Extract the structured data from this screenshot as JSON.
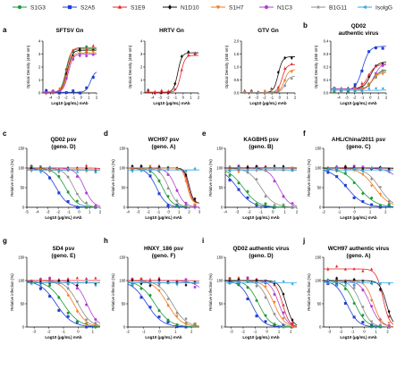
{
  "legend": [
    {
      "name": "S1G3",
      "color": "#1e9a3a",
      "marker": "circle"
    },
    {
      "name": "S2A5",
      "color": "#1f3fd6",
      "marker": "square"
    },
    {
      "name": "S1E9",
      "color": "#e8262a",
      "marker": "triangle-up"
    },
    {
      "name": "N1D10",
      "color": "#111111",
      "marker": "diamond"
    },
    {
      "name": "S1H7",
      "color": "#f07a1a",
      "marker": "triangle-down"
    },
    {
      "name": "N1C3",
      "color": "#b03fd2",
      "marker": "circle"
    },
    {
      "name": "B1G11",
      "color": "#8c8c8c",
      "marker": "star"
    },
    {
      "name": "IsolgG",
      "color": "#35a6e0",
      "marker": "triangle-left"
    }
  ],
  "chart_data": [
    {
      "panel": "a",
      "type": "line",
      "title": "SFTSV Gn",
      "xlabel": "Log10 (μg/mL) mAb",
      "ylabel": "Optical Density (450 nm)",
      "xlim": [
        -5,
        2
      ],
      "xticks": [
        -4,
        -3,
        -2,
        -1,
        0,
        1,
        2
      ],
      "ylim": [
        0,
        4
      ],
      "yticks": [
        0,
        1,
        2,
        3,
        4
      ],
      "series": [
        {
          "name": "S1G3",
          "ec50": -2.0,
          "top": 3.4,
          "bottom": 0.05,
          "hill": 1.4
        },
        {
          "name": "S2A5",
          "ec50": 1.2,
          "top": 1.7,
          "bottom": 0.05,
          "hill": 1.5
        },
        {
          "name": "S1E9",
          "ec50": -1.9,
          "top": 3.5,
          "bottom": 0.05,
          "hill": 1.4
        },
        {
          "name": "N1D10",
          "ec50": -1.8,
          "top": 3.3,
          "bottom": 0.05,
          "hill": 1.4
        },
        {
          "name": "S1H7",
          "ec50": -1.8,
          "top": 3.1,
          "bottom": 0.05,
          "hill": 1.4
        },
        {
          "name": "N1C3",
          "ec50": -1.7,
          "top": 3.0,
          "bottom": 0.05,
          "hill": 1.4
        }
      ]
    },
    {
      "panel": "",
      "type": "line",
      "title": "HRTV Gn",
      "xlabel": "Log10 (μg/mL) mAb",
      "ylabel": "Optical Density (450 nm)",
      "xlim": [
        -5,
        2
      ],
      "xticks": [
        -4,
        -3,
        -2,
        -1,
        0,
        1,
        2
      ],
      "ylim": [
        0,
        4
      ],
      "yticks": [
        0,
        1,
        2,
        3,
        4
      ],
      "series": [
        {
          "name": "N1D10",
          "ec50": -0.7,
          "top": 3.1,
          "bottom": 0.05,
          "hill": 1.6
        },
        {
          "name": "S1E9",
          "ec50": -0.3,
          "top": 2.9,
          "bottom": 0.05,
          "hill": 1.6
        }
      ]
    },
    {
      "panel": "",
      "type": "line",
      "title": "GTV Gn",
      "xlabel": "Log10 (μg/mL) mAb",
      "ylabel": "Optical Density (450 nm)",
      "xlim": [
        -5,
        2
      ],
      "xticks": [
        -4,
        -3,
        -2,
        -1,
        0,
        1,
        2
      ],
      "ylim": [
        0,
        2
      ],
      "yticks": [
        0.0,
        0.5,
        1.0,
        1.5,
        2.0
      ],
      "series": [
        {
          "name": "N1D10",
          "ec50": -0.2,
          "top": 1.4,
          "bottom": 0.02,
          "hill": 1.5
        },
        {
          "name": "S1E9",
          "ec50": 0.3,
          "top": 1.1,
          "bottom": 0.02,
          "hill": 1.5
        },
        {
          "name": "S1H7",
          "ec50": 0.6,
          "top": 0.9,
          "bottom": 0.02,
          "hill": 1.5
        },
        {
          "name": "B1G11",
          "ec50": 0.7,
          "top": 0.65,
          "bottom": 0.02,
          "hill": 1.5
        }
      ]
    },
    {
      "panel": "b",
      "type": "line",
      "title": "QD02",
      "subtitle": "authentic virus",
      "xlabel": "Log10 (μg/mL) mAb",
      "ylabel": "Optical Density (450 nm)",
      "xlim": [
        -5,
        2
      ],
      "xticks": [
        -4,
        -3,
        -2,
        -1,
        0,
        1,
        2
      ],
      "ylim": [
        0,
        0.4
      ],
      "yticks": [
        0.0,
        0.1,
        0.2,
        0.3,
        0.4
      ],
      "series": [
        {
          "name": "S2A5",
          "ec50": -1.0,
          "top": 0.36,
          "bottom": 0.02,
          "hill": 1.0
        },
        {
          "name": "N1D10",
          "ec50": 0.0,
          "top": 0.24,
          "bottom": 0.03,
          "hill": 1.0
        },
        {
          "name": "S1E9",
          "ec50": -0.3,
          "top": 0.22,
          "bottom": 0.03,
          "hill": 1.0
        },
        {
          "name": "N1C3",
          "ec50": 0.5,
          "top": 0.23,
          "bottom": 0.03,
          "hill": 1.0
        },
        {
          "name": "S1G3",
          "ec50": 0.3,
          "top": 0.18,
          "bottom": 0.02,
          "hill": 1.0
        },
        {
          "name": "B1G11",
          "ec50": 0.2,
          "top": 0.17,
          "bottom": 0.02,
          "hill": 1.0
        },
        {
          "name": "S1H7",
          "ec50": 0.2,
          "top": 0.16,
          "bottom": 0.02,
          "hill": 1.0
        },
        {
          "name": "IsolgG",
          "ec50": 3.0,
          "top": 0.05,
          "bottom": 0.02,
          "hill": 1.0
        }
      ]
    },
    {
      "panel": "c",
      "type": "line",
      "title": "QD02 psv",
      "subtitle": "(geno. D)",
      "xlabel": "Log10 (μg/mL) mAb",
      "ylabel": "Relative infection (%)",
      "xlim": [
        -5,
        2
      ],
      "xticks": [
        -5,
        -4,
        -3,
        -2,
        -1,
        0,
        1,
        2
      ],
      "ylim": [
        0,
        150
      ],
      "yticks": [
        0,
        50,
        100,
        150
      ],
      "series": [
        {
          "name": "S2A5",
          "ic50": -2.2,
          "top": 100,
          "bottom": 0,
          "hill": 0.8
        },
        {
          "name": "S1G3",
          "ic50": -1.3,
          "top": 100,
          "bottom": 0,
          "hill": 0.8
        },
        {
          "name": "B1G11",
          "ic50": -0.5,
          "top": 100,
          "bottom": 0,
          "hill": 0.9
        },
        {
          "name": "N1C3",
          "ic50": 0.5,
          "top": 100,
          "bottom": 0,
          "hill": 1.0
        },
        {
          "name": "S1E9",
          "ic50": 3.5,
          "top": 100,
          "bottom": 60,
          "hill": 1.0
        },
        {
          "name": "N1D10",
          "ic50": 4.0,
          "top": 95,
          "bottom": 70,
          "hill": 1.0
        },
        {
          "name": "S1H7",
          "ic50": 3.8,
          "top": 95,
          "bottom": 70,
          "hill": 1.0
        },
        {
          "name": "IsolgG",
          "ic50": 6.0,
          "top": 95,
          "bottom": 80,
          "hill": 1.0
        }
      ]
    },
    {
      "panel": "d",
      "type": "line",
      "title": "WCH97 psv",
      "subtitle": "(geno. A)",
      "xlabel": "Log10 (μg/mL) mAb",
      "ylabel": "Relative infection (%)",
      "xlim": [
        -4,
        3
      ],
      "xticks": [
        -4,
        -3,
        -2,
        -1,
        0,
        1,
        2,
        3
      ],
      "ylim": [
        0,
        150
      ],
      "yticks": [
        0,
        50,
        100,
        150
      ],
      "series": [
        {
          "name": "S2A5",
          "ic50": -1.2,
          "top": 100,
          "bottom": 0,
          "hill": 0.9
        },
        {
          "name": "S1G3",
          "ic50": -0.6,
          "top": 100,
          "bottom": 0,
          "hill": 0.9
        },
        {
          "name": "B1G11",
          "ic50": 0.0,
          "top": 100,
          "bottom": 0,
          "hill": 1.0
        },
        {
          "name": "N1C3",
          "ic50": 0.7,
          "top": 100,
          "bottom": 0,
          "hill": 1.0
        },
        {
          "name": "S1E9",
          "ic50": 1.9,
          "top": 100,
          "bottom": 10,
          "hill": 2.0
        },
        {
          "name": "N1D10",
          "ic50": 2.0,
          "top": 100,
          "bottom": 10,
          "hill": 2.0
        },
        {
          "name": "S1H7",
          "ic50": 1.8,
          "top": 100,
          "bottom": 10,
          "hill": 2.0
        },
        {
          "name": "IsolgG",
          "ic50": 6.0,
          "top": 95,
          "bottom": 80,
          "hill": 1.0
        }
      ]
    },
    {
      "panel": "e",
      "type": "line",
      "title": "KAGBH5 psv",
      "subtitle": "(geno. B)",
      "xlabel": "Log10 (μg/mL) mAb",
      "ylabel": "Relative infection (%)",
      "xlim": [
        -4,
        2
      ],
      "xticks": [
        -4,
        -3,
        -2,
        -1,
        0,
        1,
        2
      ],
      "ylim": [
        0,
        150
      ],
      "yticks": [
        0,
        50,
        100,
        150
      ],
      "series": [
        {
          "name": "S2A5",
          "ic50": -3.0,
          "top": 100,
          "bottom": 0,
          "hill": 0.7
        },
        {
          "name": "S1G3",
          "ic50": -2.5,
          "top": 100,
          "bottom": 0,
          "hill": 0.7
        },
        {
          "name": "B1G11",
          "ic50": -1.0,
          "top": 100,
          "bottom": 0,
          "hill": 0.8
        },
        {
          "name": "N1C3",
          "ic50": 0.5,
          "top": 100,
          "bottom": 0,
          "hill": 1.0
        },
        {
          "name": "S1E9",
          "ic50": 4.0,
          "top": 100,
          "bottom": 50,
          "hill": 1.0
        },
        {
          "name": "N1D10",
          "ic50": 4.5,
          "top": 100,
          "bottom": 60,
          "hill": 1.0
        },
        {
          "name": "S1H7",
          "ic50": 4.0,
          "top": 95,
          "bottom": 60,
          "hill": 1.0
        },
        {
          "name": "IsolgG",
          "ic50": 6.0,
          "top": 95,
          "bottom": 80,
          "hill": 1.0
        }
      ]
    },
    {
      "panel": "f",
      "type": "line",
      "title": "AHL/China/2011 psv",
      "subtitle": "(geno. C)",
      "xlabel": "Log10 (μg/mL) mAb",
      "ylabel": "Relative infection (%)",
      "xlim": [
        -2,
        2.5
      ],
      "xticks": [
        -2,
        -1,
        0,
        1,
        2
      ],
      "ylim": [
        0,
        150
      ],
      "yticks": [
        0,
        50,
        100,
        150
      ],
      "series": [
        {
          "name": "S2A5",
          "ic50": -0.5,
          "top": 100,
          "bottom": 0,
          "hill": 0.8
        },
        {
          "name": "S1G3",
          "ic50": 0.3,
          "top": 100,
          "bottom": 0,
          "hill": 0.8
        },
        {
          "name": "S1H7",
          "ic50": 1.3,
          "top": 100,
          "bottom": 0,
          "hill": 0.9
        },
        {
          "name": "B1G11",
          "ic50": 1.6,
          "top": 100,
          "bottom": 0,
          "hill": 1.0
        },
        {
          "name": "N1C3",
          "ic50": 3.0,
          "top": 100,
          "bottom": 30,
          "hill": 1.0
        },
        {
          "name": "S1E9",
          "ic50": 4.0,
          "top": 100,
          "bottom": 60,
          "hill": 1.0
        },
        {
          "name": "N1D10",
          "ic50": 4.5,
          "top": 100,
          "bottom": 70,
          "hill": 1.0
        },
        {
          "name": "IsolgG",
          "ic50": 6.0,
          "top": 95,
          "bottom": 80,
          "hill": 1.0
        }
      ]
    },
    {
      "panel": "g",
      "type": "line",
      "title": "SD4 psv",
      "subtitle": "(geno. E)",
      "xlabel": "Log10 (μg/mL) mAb",
      "ylabel": "Relative infection (%)",
      "xlim": [
        -3.5,
        1.5
      ],
      "xticks": [
        -3,
        -2,
        -1,
        0,
        1
      ],
      "ylim": [
        0,
        150
      ],
      "yticks": [
        0,
        50,
        100,
        150
      ],
      "series": [
        {
          "name": "S2A5",
          "ic50": -1.5,
          "top": 100,
          "bottom": 0,
          "hill": 0.8
        },
        {
          "name": "S1G3",
          "ic50": -1.0,
          "top": 100,
          "bottom": 0,
          "hill": 0.8
        },
        {
          "name": "S1H7",
          "ic50": -0.3,
          "top": 100,
          "bottom": 0,
          "hill": 1.0
        },
        {
          "name": "B1G11",
          "ic50": 0.0,
          "top": 100,
          "bottom": 0,
          "hill": 1.0
        },
        {
          "name": "N1C3",
          "ic50": 0.6,
          "top": 100,
          "bottom": 0,
          "hill": 1.2
        },
        {
          "name": "S1E9",
          "ic50": 4.0,
          "top": 100,
          "bottom": 70,
          "hill": 1.0
        },
        {
          "name": "N1D10",
          "ic50": 4.5,
          "top": 95,
          "bottom": 70,
          "hill": 1.0
        },
        {
          "name": "IsolgG",
          "ic50": 6.0,
          "top": 95,
          "bottom": 80,
          "hill": 1.0
        }
      ]
    },
    {
      "panel": "h",
      "type": "line",
      "title": "HNXY_186 psv",
      "subtitle": "(geno. F)",
      "xlabel": "Log10 (μg/mL) mAb",
      "ylabel": "Relative infection (%)",
      "xlim": [
        -2,
        2.5
      ],
      "xticks": [
        -2,
        -1,
        0,
        1,
        2
      ],
      "ylim": [
        0,
        150
      ],
      "yticks": [
        0,
        50,
        100,
        150
      ],
      "series": [
        {
          "name": "S2A5",
          "ic50": -0.8,
          "top": 100,
          "bottom": 0,
          "hill": 0.9
        },
        {
          "name": "S1G3",
          "ic50": -0.3,
          "top": 100,
          "bottom": 0,
          "hill": 0.9
        },
        {
          "name": "S1H7",
          "ic50": 0.5,
          "top": 100,
          "bottom": 0,
          "hill": 1.0
        },
        {
          "name": "B1G11",
          "ic50": 0.8,
          "top": 100,
          "bottom": 0,
          "hill": 1.0
        },
        {
          "name": "N1C3",
          "ic50": 3.0,
          "top": 100,
          "bottom": 40,
          "hill": 1.0
        },
        {
          "name": "S1E9",
          "ic50": 4.0,
          "top": 100,
          "bottom": 70,
          "hill": 1.0
        },
        {
          "name": "N1D10",
          "ic50": 4.5,
          "top": 95,
          "bottom": 70,
          "hill": 1.0
        },
        {
          "name": "IsolgG",
          "ic50": 6.0,
          "top": 95,
          "bottom": 80,
          "hill": 1.0
        }
      ]
    },
    {
      "panel": "i",
      "type": "line",
      "title": "QD02 authentic virus",
      "subtitle": "(geno. D)",
      "xlabel": "Log10 (μg/mL) mAb",
      "ylabel": "Relative infection (%)",
      "xlim": [
        -3.5,
        2.5
      ],
      "xticks": [
        -3,
        -2,
        -1,
        0,
        1,
        2
      ],
      "ylim": [
        0,
        150
      ],
      "yticks": [
        0,
        50,
        100,
        150
      ],
      "series": [
        {
          "name": "S2A5",
          "ic50": -1.3,
          "top": 100,
          "bottom": 0,
          "hill": 0.9
        },
        {
          "name": "S1G3",
          "ic50": -0.7,
          "top": 100,
          "bottom": 0,
          "hill": 0.9
        },
        {
          "name": "B1G11",
          "ic50": 0.2,
          "top": 100,
          "bottom": 0,
          "hill": 1.0
        },
        {
          "name": "S1H7",
          "ic50": 0.6,
          "top": 100,
          "bottom": 0,
          "hill": 1.0
        },
        {
          "name": "N1C3",
          "ic50": 1.0,
          "top": 100,
          "bottom": 0,
          "hill": 1.2
        },
        {
          "name": "S1E9",
          "ic50": 1.3,
          "top": 100,
          "bottom": 0,
          "hill": 1.5
        },
        {
          "name": "N1D10",
          "ic50": 1.6,
          "top": 100,
          "bottom": 0,
          "hill": 1.5
        },
        {
          "name": "IsolgG",
          "ic50": 6.0,
          "top": 95,
          "bottom": 80,
          "hill": 1.0
        }
      ]
    },
    {
      "panel": "j",
      "type": "line",
      "title": "WCH97 authentic virus",
      "subtitle": "(geno. A)",
      "xlabel": "Log10 (μg/mL) mAb",
      "ylabel": "Relative infection (%)",
      "xlim": [
        -3.5,
        2.5
      ],
      "xticks": [
        -3,
        -2,
        -1,
        0,
        1,
        2
      ],
      "ylim": [
        0,
        150
      ],
      "yticks": [
        0,
        50,
        100,
        150
      ],
      "series": [
        {
          "name": "S2A5",
          "ic50": -1.5,
          "top": 100,
          "bottom": 0,
          "hill": 0.9
        },
        {
          "name": "S1G3",
          "ic50": -0.8,
          "top": 100,
          "bottom": 0,
          "hill": 0.9
        },
        {
          "name": "B1G11",
          "ic50": -0.3,
          "top": 100,
          "bottom": 0,
          "hill": 1.0
        },
        {
          "name": "N1C3",
          "ic50": 0.5,
          "top": 100,
          "bottom": 0,
          "hill": 1.0
        },
        {
          "name": "S1H7",
          "ic50": 0.8,
          "top": 100,
          "bottom": 0,
          "hill": 1.2
        },
        {
          "name": "S1E9",
          "ic50": 1.6,
          "top": 125,
          "bottom": 0,
          "hill": 1.5
        },
        {
          "name": "N1D10",
          "ic50": 1.9,
          "top": 100,
          "bottom": 0,
          "hill": 1.5
        },
        {
          "name": "IsolgG",
          "ic50": 6.0,
          "top": 95,
          "bottom": 80,
          "hill": 1.0
        }
      ]
    }
  ]
}
